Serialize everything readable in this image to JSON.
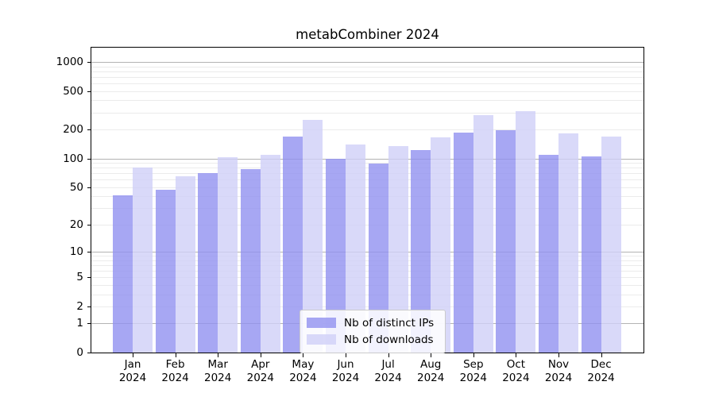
{
  "chart_data": {
    "type": "bar",
    "title": "metabCombiner 2024",
    "categories": [
      "Jan",
      "Feb",
      "Mar",
      "Apr",
      "May",
      "Jun",
      "Jul",
      "Aug",
      "Sep",
      "Oct",
      "Nov",
      "Dec"
    ],
    "year_label": "2024",
    "series": [
      {
        "name": "Nb of distinct IPs",
        "color": "#9191f0",
        "values": [
          41,
          47,
          70,
          78,
          168,
          100,
          89,
          123,
          185,
          197,
          110,
          105
        ]
      },
      {
        "name": "Nb of downloads",
        "color": "#d0d0f7",
        "values": [
          80,
          65,
          103,
          109,
          253,
          139,
          134,
          167,
          281,
          309,
          183,
          169
        ]
      }
    ],
    "bar_opacity": 0.8,
    "yscale": "log1p",
    "ylim": [
      0,
      1400
    ],
    "ytick_values": [
      1000,
      500,
      200,
      100,
      50,
      20,
      10,
      5,
      2,
      1,
      0
    ],
    "ytick_labels": [
      "1000",
      "500",
      "200",
      "100",
      "50",
      "20",
      "10",
      "5",
      "2",
      "1",
      "0"
    ],
    "grid": true,
    "legend_position": "lower center inside",
    "colors": {
      "background": "#ffffff",
      "axis": "#000000",
      "text": "#000000",
      "grid_major": "#b3b3b3",
      "grid_minor": "#ebebeb"
    }
  }
}
